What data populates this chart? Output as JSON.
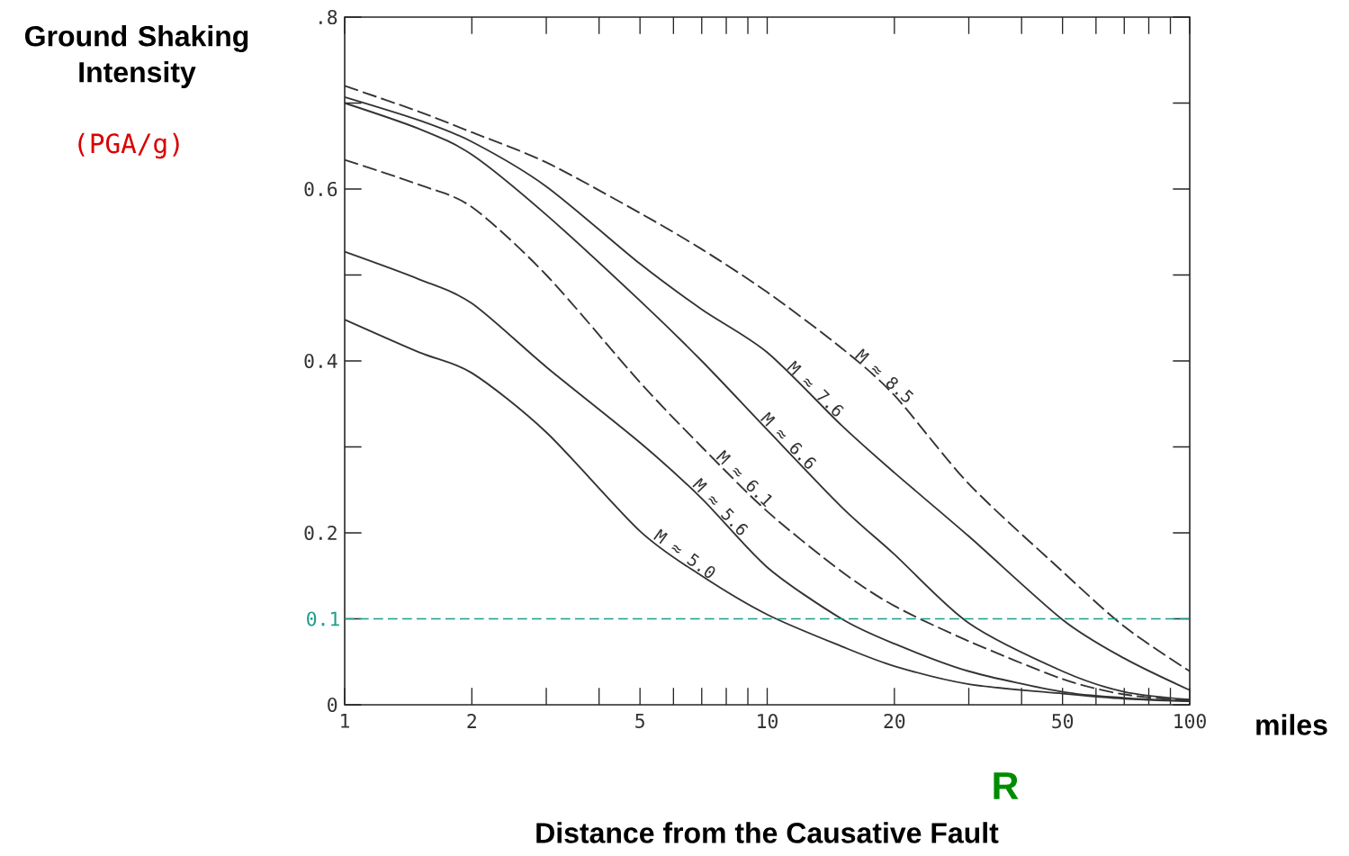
{
  "chart_data": {
    "type": "line",
    "xlabel": "Distance from the Causative Fault",
    "ylabel": "Ground Shaking Intensity",
    "annotations": [
      "(PGA/g)",
      "miles",
      "R"
    ],
    "log": "x",
    "grid": false,
    "legend": false,
    "marker": "none",
    "xlim": [
      1,
      100
    ],
    "ylim": [
      0,
      0.8
    ],
    "xticks": [
      1,
      2,
      5,
      10,
      20,
      50,
      100
    ],
    "yticks": [
      0,
      {
        "value": 0.2,
        "label": "0.2"
      },
      {
        "value": 0.4,
        "label": "0.4"
      },
      {
        "value": 0.6,
        "label": "0.6"
      },
      {
        "value": 0.8,
        "label": ".8"
      }
    ],
    "x": [
      1,
      1.5,
      2,
      3,
      5,
      7,
      10,
      15,
      20,
      30,
      50,
      70,
      100
    ],
    "ref_lines": [
      {
        "axis": "y",
        "value": 0.1,
        "label": "0.1",
        "color": "#1a9e8a",
        "line_style": "dashed"
      }
    ],
    "series": [
      {
        "name": "M ≈ 5.0",
        "color": "#333333",
        "line_style": "solid",
        "values": [
          0.448,
          0.41,
          0.386,
          0.317,
          0.202,
          0.15,
          0.105,
          0.068,
          0.045,
          0.024,
          0.013,
          0.007,
          0.004
        ]
      },
      {
        "name": "M ≈ 5.6",
        "color": "#333333",
        "line_style": "solid",
        "values": [
          0.527,
          0.495,
          0.467,
          0.393,
          0.305,
          0.24,
          0.16,
          0.1,
          0.071,
          0.039,
          0.015,
          0.008,
          0.004
        ]
      },
      {
        "name": "M ≈ 6.1",
        "color": "#333333",
        "line_style": "dashed",
        "values": [
          0.634,
          0.605,
          0.579,
          0.5,
          0.375,
          0.3,
          0.225,
          0.155,
          0.115,
          0.074,
          0.03,
          0.012,
          0.005
        ]
      },
      {
        "name": "M ≈ 6.6",
        "color": "#333333",
        "line_style": "solid",
        "values": [
          0.7,
          0.67,
          0.64,
          0.57,
          0.47,
          0.4,
          0.32,
          0.23,
          0.175,
          0.095,
          0.039,
          0.015,
          0.006
        ]
      },
      {
        "name": "M ≈ 7.6",
        "color": "#333333",
        "line_style": "solid",
        "values": [
          0.707,
          0.68,
          0.655,
          0.603,
          0.513,
          0.46,
          0.41,
          0.325,
          0.27,
          0.196,
          0.099,
          0.054,
          0.017
        ]
      },
      {
        "name": "M ≈ 8.5",
        "color": "#333333",
        "line_style": "dashed",
        "values": [
          0.72,
          0.69,
          0.666,
          0.631,
          0.572,
          0.53,
          0.48,
          0.415,
          0.36,
          0.257,
          0.155,
          0.091,
          0.039
        ]
      }
    ]
  }
}
